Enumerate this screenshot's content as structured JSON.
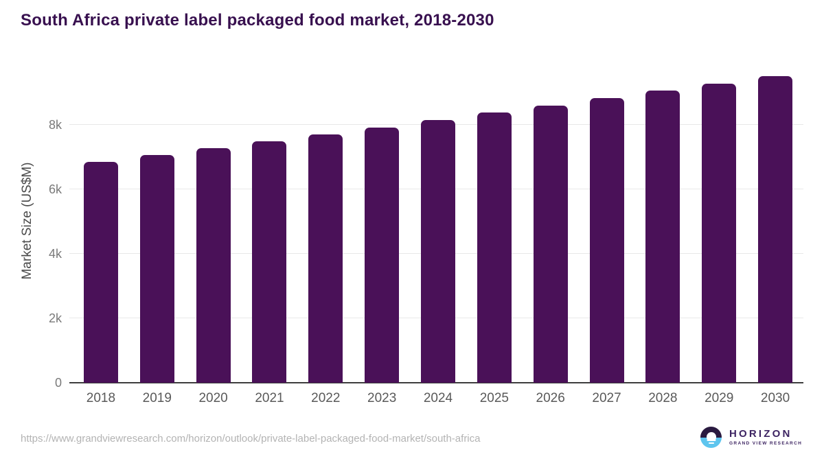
{
  "title": "South Africa private label packaged food market, 2018-2030",
  "source_url": "https://www.grandviewresearch.com/horizon/outlook/private-label-packaged-food-market/south-africa",
  "logo": {
    "name": "HORIZON",
    "subtitle": "GRAND VIEW RESEARCH"
  },
  "colors": {
    "bar": "#4a1158",
    "title": "#38104f",
    "grid": "#e8e8e8",
    "axis_line": "#3d3d3d",
    "y_tick": "#7a7a7a",
    "x_label": "#595959",
    "y_axis_title": "#4a4a4a",
    "url": "#b3b3b3",
    "logo_purple": "#3d2462",
    "logo_dark_half": "#2a1a40",
    "logo_blue_half": "#5ec5ee"
  },
  "chart_data": {
    "type": "bar",
    "title": "South Africa private label packaged food market, 2018-2030",
    "xlabel": "",
    "ylabel": "Market Size (US$M)",
    "categories": [
      "2018",
      "2019",
      "2020",
      "2021",
      "2022",
      "2023",
      "2024",
      "2025",
      "2026",
      "2027",
      "2028",
      "2029",
      "2030"
    ],
    "values": [
      6860,
      7070,
      7280,
      7500,
      7710,
      7930,
      8150,
      8380,
      8600,
      8830,
      9070,
      9290,
      9510
    ],
    "yticks": [
      {
        "value": 0,
        "label": "0"
      },
      {
        "value": 2000,
        "label": "2k"
      },
      {
        "value": 4000,
        "label": "4k"
      },
      {
        "value": 6000,
        "label": "6k"
      },
      {
        "value": 8000,
        "label": "8k"
      }
    ],
    "ylim": [
      0,
      9920
    ],
    "grid": "horizontal",
    "legend": "none"
  }
}
